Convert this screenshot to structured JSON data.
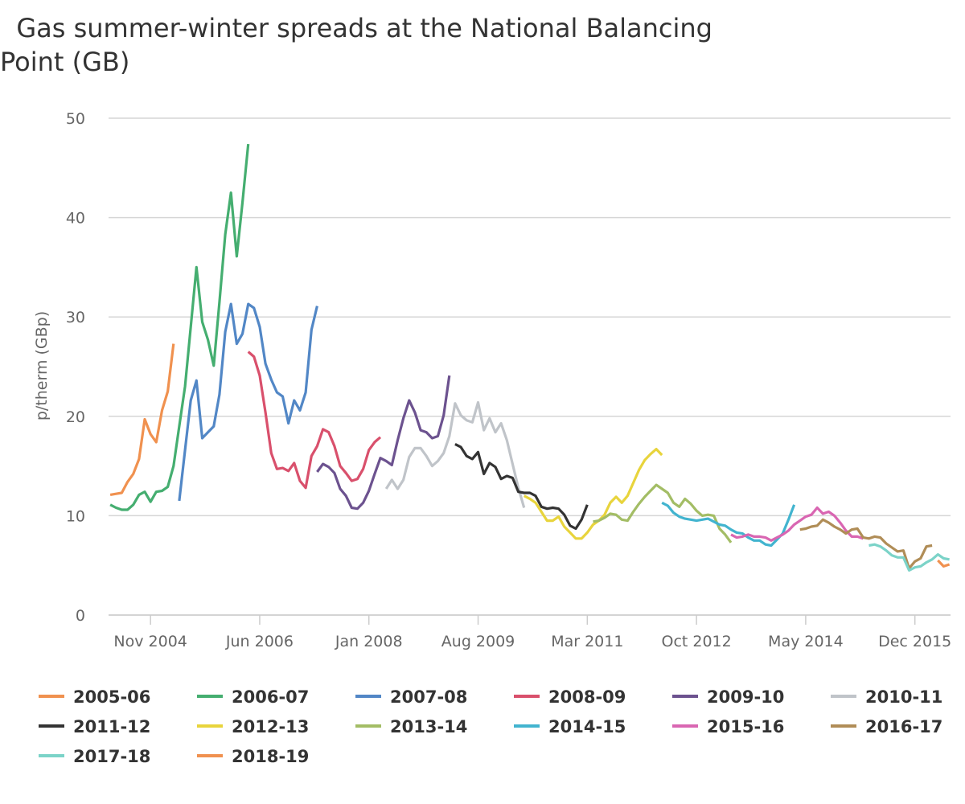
{
  "chart_data": {
    "type": "line",
    "title": "  Gas summer-winter spreads at the National Balancing\nPoint (GB)",
    "xlabel": "",
    "ylabel": "p/therm (GBp)",
    "ylim": [
      0,
      50
    ],
    "yticks": [
      "0",
      "10",
      "20",
      "30",
      "40",
      "50"
    ],
    "ytick_values": [
      0,
      10,
      20,
      30,
      40,
      50
    ],
    "x_unit": "month",
    "x_origin": "Nov 2004",
    "xlim_months_from_origin": [
      -7.3,
      139.2
    ],
    "xticks": [
      "Nov 2004",
      "Jun 2006",
      "Jan 2008",
      "Aug 2009",
      "Mar 2011",
      "Oct 2012",
      "May 2014",
      "Dec 2015"
    ],
    "xtick_months_from_origin": [
      0,
      19,
      38,
      57,
      76,
      95,
      114,
      133
    ],
    "grid": true,
    "legend_position": "bottom",
    "series": [
      {
        "name": "2005-06",
        "color": "#f0914f",
        "start_month": -7,
        "values": [
          12.1,
          12.2,
          12.3,
          13.4,
          14.2,
          15.7,
          19.7,
          18.2,
          17.4,
          20.6,
          22.5,
          27.3
        ]
      },
      {
        "name": "2006-07",
        "color": "#45ae70",
        "start_month": -7,
        "values": [
          11.1,
          10.8,
          10.6,
          10.6,
          11.1,
          12.1,
          12.4,
          11.4,
          12.4,
          12.5,
          12.9,
          15.0,
          19.0,
          23.0,
          29.0,
          35.0,
          29.5,
          27.7,
          25.1,
          31.5,
          38.3,
          42.5,
          36.1,
          41.5,
          47.4
        ]
      },
      {
        "name": "2007-08",
        "color": "#5287c6",
        "start_month": 5,
        "values": [
          11.5,
          16.6,
          21.6,
          23.6,
          17.8,
          18.4,
          19.0,
          22.2,
          28.5,
          31.3,
          27.3,
          28.3,
          31.3,
          30.9,
          29.0,
          25.3,
          23.7,
          22.4,
          22.0,
          19.3,
          21.6,
          20.6,
          22.4,
          28.7,
          31.1
        ]
      },
      {
        "name": "2008-09",
        "color": "#d9506c",
        "start_month": 17,
        "values": [
          26.5,
          26.0,
          24.1,
          20.4,
          16.3,
          14.7,
          14.8,
          14.5,
          15.3,
          13.5,
          12.8,
          16.0,
          17.0,
          18.7,
          18.4,
          17.0,
          15.0,
          14.3,
          13.5,
          13.7,
          14.7,
          16.6,
          17.4,
          17.9
        ]
      },
      {
        "name": "2009-10",
        "color": "#6c528f",
        "start_month": 29,
        "values": [
          14.4,
          15.2,
          14.9,
          14.3,
          12.7,
          12.0,
          10.8,
          10.7,
          11.3,
          12.5,
          14.2,
          15.8,
          15.5,
          15.1,
          17.6,
          19.8,
          21.6,
          20.4,
          18.6,
          18.4,
          17.8,
          18.0,
          20.1,
          24.1
        ]
      },
      {
        "name": "2010-11",
        "color": "#c0c4c9",
        "start_month": 41,
        "values": [
          12.7,
          13.6,
          12.7,
          13.6,
          15.9,
          16.8,
          16.8,
          16.0,
          15.0,
          15.5,
          16.3,
          18.0,
          21.3,
          20.1,
          19.6,
          19.4,
          21.4,
          18.6,
          19.8,
          18.4,
          19.3,
          17.6,
          15.2,
          12.8,
          10.8
        ]
      },
      {
        "name": "2011-12",
        "color": "#333333",
        "start_month": 53,
        "values": [
          17.2,
          16.9,
          16.0,
          15.7,
          16.4,
          14.2,
          15.3,
          14.9,
          13.7,
          14.0,
          13.8,
          12.4,
          12.3,
          12.3,
          12.0,
          10.9,
          10.7,
          10.8,
          10.7,
          10.1,
          9.0,
          8.7,
          9.6,
          11.1
        ]
      },
      {
        "name": "2012-13",
        "color": "#e8d43c",
        "start_month": 65,
        "values": [
          12.0,
          11.7,
          11.3,
          10.4,
          9.5,
          9.5,
          9.9,
          8.9,
          8.3,
          7.7,
          7.7,
          8.3,
          9.1,
          9.5,
          10.1,
          11.3,
          11.9,
          11.3,
          12.0,
          13.3,
          14.6,
          15.6,
          16.2,
          16.7,
          16.1
        ]
      },
      {
        "name": "2013-14",
        "color": "#a3bd65",
        "start_month": 77,
        "values": [
          9.4,
          9.5,
          9.8,
          10.2,
          10.1,
          9.6,
          9.5,
          10.4,
          11.2,
          11.9,
          12.5,
          13.1,
          12.7,
          12.3,
          11.3,
          10.9,
          11.7,
          11.2,
          10.5,
          10.0,
          10.1,
          10.0,
          8.7,
          8.1,
          7.3
        ]
      },
      {
        "name": "2014-15",
        "color": "#42b4cf",
        "start_month": 89,
        "values": [
          11.3,
          11.0,
          10.3,
          9.9,
          9.7,
          9.6,
          9.5,
          9.6,
          9.7,
          9.4,
          9.1,
          9.0,
          8.6,
          8.3,
          8.2,
          7.8,
          7.5,
          7.5,
          7.1,
          7.0,
          7.6,
          8.2,
          9.6,
          11.1
        ]
      },
      {
        "name": "2015-16",
        "color": "#d966b2",
        "start_month": 101,
        "values": [
          8.1,
          7.8,
          7.9,
          8.1,
          7.9,
          7.9,
          7.8,
          7.5,
          7.8,
          8.1,
          8.5,
          9.1,
          9.5,
          9.9,
          10.1,
          10.8,
          10.2,
          10.4,
          10.0,
          9.3,
          8.5,
          7.9,
          7.9,
          7.7
        ]
      },
      {
        "name": "2016-17",
        "color": "#b08d57",
        "start_month": 113,
        "values": [
          8.6,
          8.7,
          8.9,
          9.0,
          9.6,
          9.3,
          8.9,
          8.6,
          8.2,
          8.6,
          8.7,
          7.8,
          7.7,
          7.9,
          7.8,
          7.2,
          6.8,
          6.4,
          6.5,
          4.7,
          5.4,
          5.7,
          6.9,
          7.0
        ]
      },
      {
        "name": "2017-18",
        "color": "#7bd3c8",
        "start_month": 125,
        "values": [
          7.0,
          7.1,
          6.9,
          6.5,
          6.0,
          5.8,
          5.8,
          4.5,
          4.8,
          4.9,
          5.3,
          5.6,
          6.1,
          5.7,
          5.6
        ]
      },
      {
        "name": "2018-19",
        "color": "#f0914f",
        "start_month": 137,
        "values": [
          5.5,
          4.9,
          5.1
        ]
      }
    ]
  }
}
